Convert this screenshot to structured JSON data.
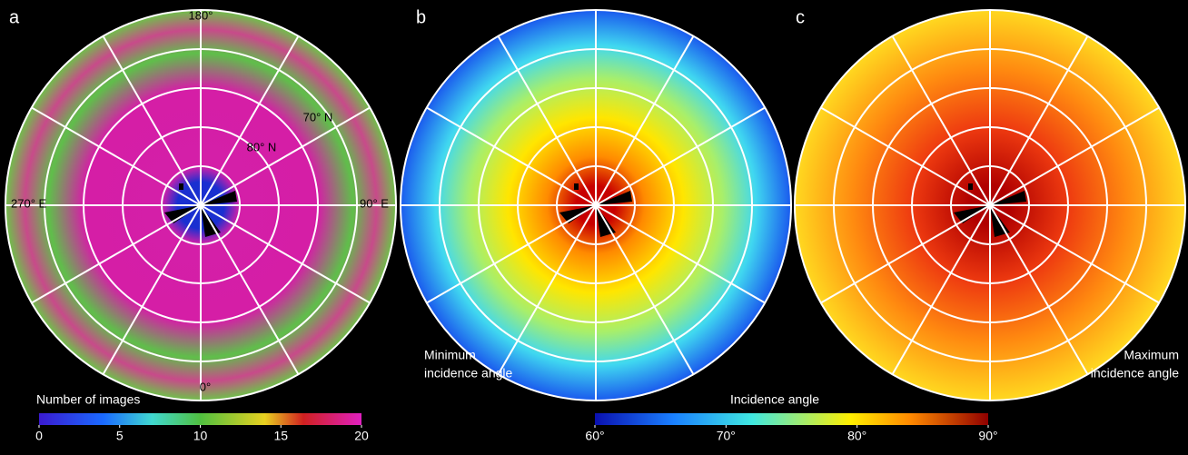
{
  "panels": [
    {
      "label": "a",
      "lon_labels": [
        "180°",
        "270° E",
        "90° E",
        "0°"
      ],
      "lat_labels": [
        "70° N",
        "80° N"
      ]
    },
    {
      "label": "b",
      "caption": [
        "Minimum",
        "incidence angle"
      ]
    },
    {
      "label": "c",
      "caption": [
        "Maximum",
        "incidence angle"
      ]
    }
  ],
  "colorbars": [
    {
      "title": "Number of images",
      "range": [
        0,
        20
      ],
      "ticks": [
        0,
        5,
        10,
        15,
        20
      ]
    },
    {
      "title": "Incidence angle",
      "range": [
        60,
        90
      ],
      "ticks": [
        {
          "value": 60,
          "label": "60°"
        },
        {
          "value": 70,
          "label": "70°"
        },
        {
          "value": 80,
          "label": "80°"
        },
        {
          "value": 90,
          "label": "90°"
        }
      ]
    }
  ]
}
